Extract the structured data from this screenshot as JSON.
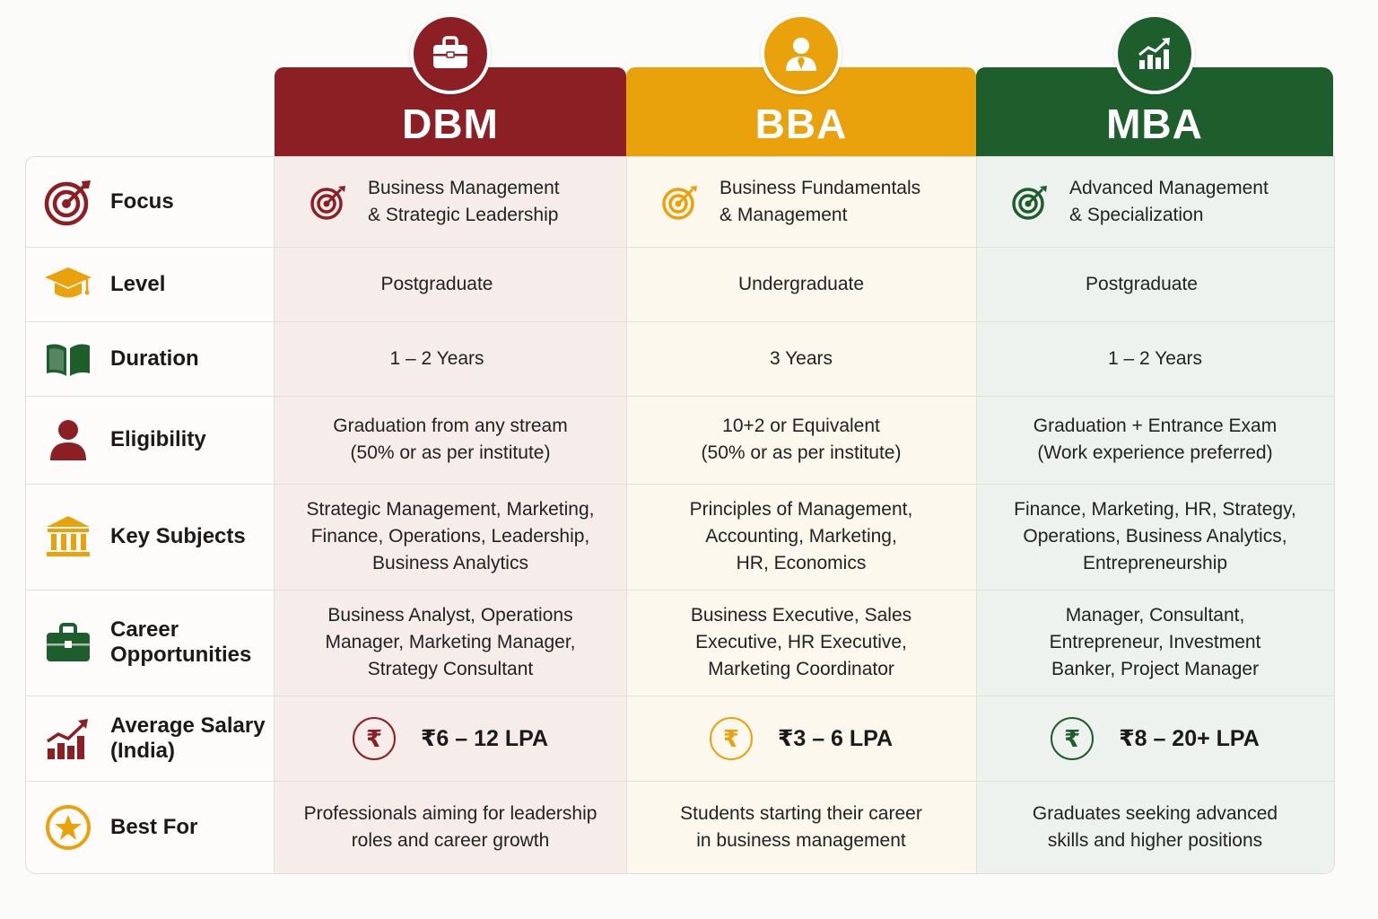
{
  "colors": {
    "dbm": "#8b1f24",
    "bba": "#eaa20c",
    "mba": "#1e5e2c"
  },
  "columns": [
    {
      "key": "dbm",
      "title": "DBM",
      "icon": "briefcase-icon"
    },
    {
      "key": "bba",
      "title": "BBA",
      "icon": "person-tie-icon"
    },
    {
      "key": "mba",
      "title": "MBA",
      "icon": "growth-chart-icon"
    }
  ],
  "rows": [
    {
      "key": "focus",
      "label": "Focus",
      "icon": "target-icon",
      "dbm": "Business Management\n& Strategic Leadership",
      "bba": "Business Fundamentals\n& Management",
      "mba": "Advanced Management\n& Specialization"
    },
    {
      "key": "level",
      "label": "Level",
      "icon": "graduation-cap-icon",
      "dbm": "Postgraduate",
      "bba": "Undergraduate",
      "mba": "Postgraduate"
    },
    {
      "key": "duration",
      "label": "Duration",
      "icon": "open-book-icon",
      "dbm": "1 – 2 Years",
      "bba": "3 Years",
      "mba": "1 – 2 Years"
    },
    {
      "key": "eligibility",
      "label": "Eligibility",
      "icon": "user-icon",
      "dbm": "Graduation from any stream\n(50% or as per institute)",
      "bba": "10+2 or Equivalent\n(50% or as per institute)",
      "mba": "Graduation + Entrance Exam\n(Work experience preferred)"
    },
    {
      "key": "subjects",
      "label": "Key Subjects",
      "icon": "institution-icon",
      "dbm": "Strategic Management, Marketing,\nFinance, Operations, Leadership,\nBusiness Analytics",
      "bba": "Principles of Management,\nAccounting, Marketing,\nHR, Economics",
      "mba": "Finance, Marketing, HR, Strategy,\nOperations, Business Analytics,\nEntrepreneurship"
    },
    {
      "key": "career",
      "label": "Career\nOpportunities",
      "icon": "briefcase-icon",
      "dbm": "Business Analyst, Operations\nManager, Marketing Manager,\nStrategy Consultant",
      "bba": "Business Executive, Sales\nExecutive, HR Executive,\nMarketing Coordinator",
      "mba": "Manager, Consultant,\nEntrepreneur, Investment\nBanker, Project Manager"
    },
    {
      "key": "salary",
      "label": "Average Salary\n(India)",
      "icon": "growth-chart-icon",
      "dbm": "₹6 – 12 LPA",
      "bba": "₹3 – 6 LPA",
      "mba": "₹8 – 20+ LPA"
    },
    {
      "key": "bestfor",
      "label": "Best For",
      "icon": "star-badge-icon",
      "dbm": "Professionals aiming for leadership\nroles and career growth",
      "bba": "Students starting their career\nin business management",
      "mba": "Graduates seeking advanced\nskills and higher positions"
    }
  ],
  "rupee_symbol": "₹"
}
